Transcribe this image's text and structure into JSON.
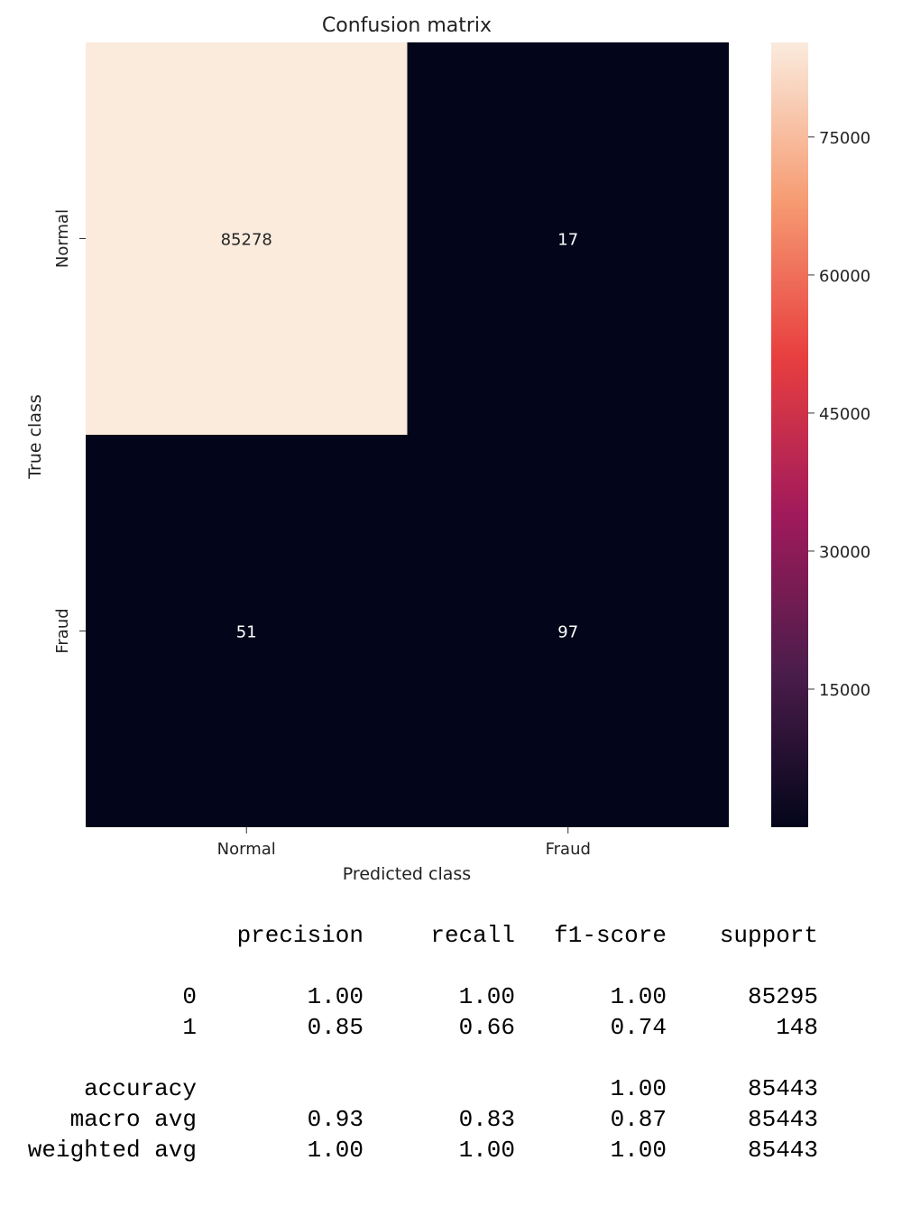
{
  "chart_data": {
    "type": "heatmap",
    "title": "Confusion matrix",
    "xlabel": "Predicted class",
    "ylabel": "True class",
    "x_categories": [
      "Normal",
      "Fraud"
    ],
    "y_categories": [
      "Normal",
      "Fraud"
    ],
    "values": [
      [
        85278,
        17
      ],
      [
        51,
        97
      ]
    ],
    "colorbar": {
      "min": 0,
      "max": 85278,
      "ticks": [
        15000,
        30000,
        45000,
        60000,
        75000
      ],
      "tick_labels": [
        "15000",
        "30000",
        "45000",
        "60000",
        "75000"
      ],
      "colormap_stops": [
        "#03051a",
        "#4c1d4b",
        "#a11a5b",
        "#e83f3f",
        "#f69c73",
        "#faebdd"
      ]
    }
  },
  "report": {
    "headers": [
      "precision",
      "recall",
      "f1-score",
      "support"
    ],
    "rows": [
      {
        "label": "0",
        "precision": "1.00",
        "recall": "1.00",
        "f1": "1.00",
        "support": "85295"
      },
      {
        "label": "1",
        "precision": "0.85",
        "recall": "0.66",
        "f1": "0.74",
        "support": "148"
      },
      {
        "label": "accuracy",
        "precision": "",
        "recall": "",
        "f1": "1.00",
        "support": "85443"
      },
      {
        "label": "macro avg",
        "precision": "0.93",
        "recall": "0.83",
        "f1": "0.87",
        "support": "85443"
      },
      {
        "label": "weighted avg",
        "precision": "1.00",
        "recall": "1.00",
        "f1": "1.00",
        "support": "85443"
      }
    ]
  }
}
